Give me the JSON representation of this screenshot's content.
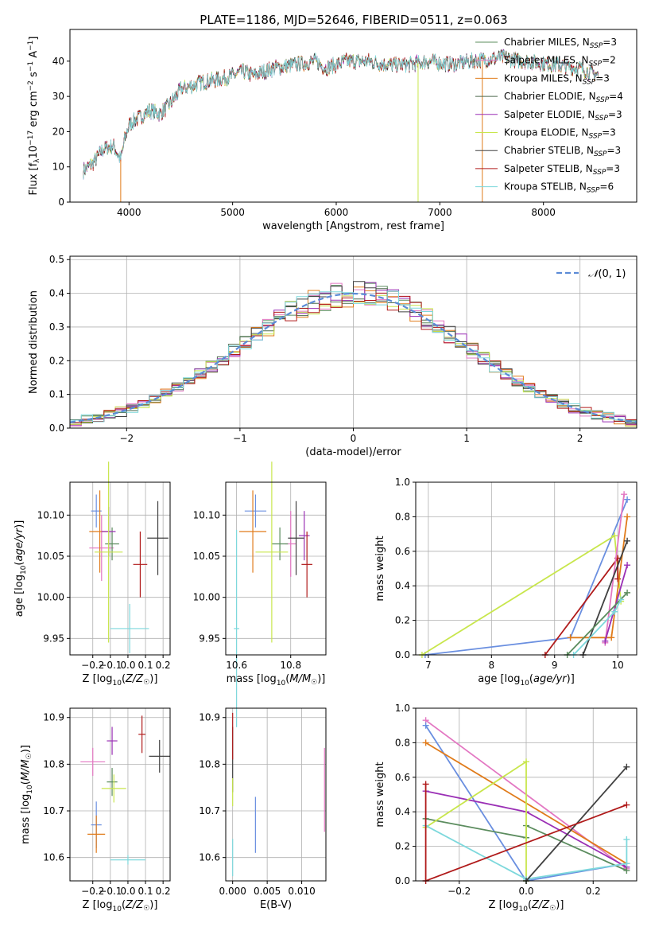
{
  "figure": {
    "title": "PLATE=1186, MJD=52646, FIBERID=0511, z=0.063"
  },
  "colors": {
    "Chabrier MILES": "#5b8c5e",
    "Salpeter MILES": "#e377c2",
    "Kroupa MILES": "#e07b1a",
    "Chabrier ELODIE": "#4f6b4f",
    "Salpeter ELODIE": "#9a2fb5",
    "Kroupa ELODIE": "#c8e64c",
    "Chabrier STELIB": "#404040",
    "Salpeter STELIB": "#b01a1a",
    "Kroupa STELIB": "#7dd8dc",
    "blue": "#6a8fe0"
  },
  "chart_data": [
    {
      "id": "spectrum",
      "type": "line",
      "xlabel": "wavelength [Angstrom, rest frame]",
      "ylabel": "Flux [f_λ 10^-17 erg cm^-2 s^-1 A^-1]",
      "xlim": [
        3430,
        8900
      ],
      "ylim": [
        0,
        49
      ],
      "xticks": [
        4000,
        5000,
        6000,
        7000,
        8000
      ],
      "yticks": [
        0,
        10,
        20,
        30,
        40
      ],
      "legend_position": "right",
      "legend": [
        {
          "label": "Chabrier MILES, N",
          "sub": "SSP",
          "n": "=3",
          "color": "#5b8c5e"
        },
        {
          "label": "Salpeter MILES, N",
          "sub": "SSP",
          "n": "=2",
          "color": "#e377c2"
        },
        {
          "label": "Kroupa MILES, N",
          "sub": "SSP",
          "n": "=3",
          "color": "#e07b1a"
        },
        {
          "label": "Chabrier ELODIE, N",
          "sub": "SSP",
          "n": "=4",
          "color": "#4f6b4f"
        },
        {
          "label": "Salpeter ELODIE, N",
          "sub": "SSP",
          "n": "=3",
          "color": "#9a2fb5"
        },
        {
          "label": "Kroupa ELODIE, N",
          "sub": "SSP",
          "n": "=3",
          "color": "#c8e64c"
        },
        {
          "label": "Chabrier STELIB, N",
          "sub": "SSP",
          "n": "=3",
          "color": "#404040"
        },
        {
          "label": "Salpeter STELIB, N",
          "sub": "SSP",
          "n": "=3",
          "color": "#b01a1a"
        },
        {
          "label": "Kroupa STELIB, N",
          "sub": "SSP",
          "n": "=6",
          "color": "#7dd8dc"
        }
      ],
      "continuum": [
        [
          3560,
          9
        ],
        [
          3650,
          11
        ],
        [
          3750,
          15
        ],
        [
          3850,
          16
        ],
        [
          3920,
          12
        ],
        [
          3960,
          18
        ],
        [
          4000,
          22
        ],
        [
          4100,
          24
        ],
        [
          4200,
          26
        ],
        [
          4300,
          25
        ],
        [
          4400,
          28
        ],
        [
          4500,
          32
        ],
        [
          4700,
          34
        ],
        [
          4900,
          35
        ],
        [
          5100,
          37
        ],
        [
          5200,
          36
        ],
        [
          5400,
          38
        ],
        [
          5600,
          39
        ],
        [
          5800,
          40
        ],
        [
          5900,
          38
        ],
        [
          6100,
          40
        ],
        [
          6300,
          40
        ],
        [
          6500,
          39
        ],
        [
          6700,
          39
        ],
        [
          6900,
          40
        ],
        [
          7100,
          39
        ],
        [
          7300,
          40
        ],
        [
          7600,
          41
        ],
        [
          7800,
          40
        ],
        [
          8100,
          39
        ],
        [
          8350,
          38
        ],
        [
          8530,
          36
        ]
      ],
      "dropouts": [
        {
          "x": 3920,
          "color": "#e07b1a"
        },
        {
          "x": 6790,
          "color": "#c8e64c"
        },
        {
          "x": 7410,
          "color": "#e07b1a"
        }
      ]
    },
    {
      "id": "residuals",
      "type": "line",
      "xlabel": "(data-model)/error",
      "ylabel": "Normed distribution",
      "xlim": [
        -2.5,
        2.5
      ],
      "ylim": [
        0,
        0.51
      ],
      "xticks": [
        -2,
        -1,
        0,
        1,
        2
      ],
      "yticks": [
        0.0,
        0.1,
        0.2,
        0.3,
        0.4,
        0.5
      ],
      "legend_label": "N(0,1)",
      "legend_position": "top-right",
      "grid": true
    },
    {
      "id": "age-vs-Z",
      "type": "scatter",
      "xlabel": "Z [log10(Z/Z☉)]",
      "ylabel": "age  [log10(age/yr)]",
      "xlim": [
        -0.33,
        0.24
      ],
      "ylim": [
        9.93,
        10.14
      ],
      "xticks": [
        -0.2,
        -0.1,
        0.0,
        0.1,
        0.2
      ],
      "yticks": [
        9.95,
        10.0,
        10.05,
        10.1
      ],
      "grid": true,
      "points": [
        {
          "x": -0.18,
          "y": 10.105,
          "xerr": 0.03,
          "yerr": 0.02,
          "color": "#6a8fe0"
        },
        {
          "x": -0.15,
          "y": 10.06,
          "xerr": 0.07,
          "yerr": 0.04,
          "color": "#e377c2"
        },
        {
          "x": -0.16,
          "y": 10.08,
          "xerr": 0.06,
          "yerr": 0.05,
          "color": "#e07b1a"
        },
        {
          "x": -0.09,
          "y": 10.065,
          "xerr": 0.04,
          "yerr": 0.02,
          "color": "#5b8c5e"
        },
        {
          "x": -0.11,
          "y": 10.08,
          "xerr": 0.04,
          "yerr": 0.03,
          "color": "#9a2fb5"
        },
        {
          "x": -0.11,
          "y": 10.055,
          "xerr": 0.08,
          "yerr": 0.11,
          "color": "#c8e64c"
        },
        {
          "x": 0.17,
          "y": 10.072,
          "xerr": 0.06,
          "yerr": 0.045,
          "color": "#404040"
        },
        {
          "x": 0.07,
          "y": 10.04,
          "xerr": 0.04,
          "yerr": 0.04,
          "color": "#b01a1a"
        },
        {
          "x": 0.01,
          "y": 9.962,
          "xerr": 0.11,
          "yerr": 0.03,
          "color": "#7dd8dc"
        }
      ]
    },
    {
      "id": "age-vs-mass",
      "type": "scatter",
      "xlabel": "mass [log10(M/M☉)]",
      "ylabel": "",
      "xlim": [
        10.56,
        10.93
      ],
      "ylim": [
        9.93,
        10.14
      ],
      "xticks": [
        10.6,
        10.8
      ],
      "yticks": [
        9.95,
        10.0,
        10.05,
        10.1
      ],
      "grid": true,
      "points": [
        {
          "x": 10.67,
          "y": 10.105,
          "xerr": 0.04,
          "yerr": 0.02,
          "color": "#6a8fe0"
        },
        {
          "x": 10.8,
          "y": 10.065,
          "xerr": 0.02,
          "yerr": 0.04,
          "color": "#e377c2"
        },
        {
          "x": 10.66,
          "y": 10.08,
          "xerr": 0.05,
          "yerr": 0.05,
          "color": "#e07b1a"
        },
        {
          "x": 10.76,
          "y": 10.065,
          "xerr": 0.03,
          "yerr": 0.02,
          "color": "#5b8c5e"
        },
        {
          "x": 10.85,
          "y": 10.075,
          "xerr": 0.02,
          "yerr": 0.03,
          "color": "#9a2fb5"
        },
        {
          "x": 10.73,
          "y": 10.055,
          "xerr": 0.06,
          "yerr": 0.11,
          "color": "#c8e64c"
        },
        {
          "x": 10.82,
          "y": 10.072,
          "xerr": 0.03,
          "yerr": 0.045,
          "color": "#404040"
        },
        {
          "x": 10.86,
          "y": 10.04,
          "xerr": 0.02,
          "yerr": 0.04,
          "color": "#b01a1a"
        },
        {
          "x": 10.6,
          "y": 9.962,
          "xerr": 0.01,
          "yerr": 0.12,
          "color": "#7dd8dc"
        }
      ]
    },
    {
      "id": "weight-vs-age",
      "type": "line",
      "xlabel": "age  [log10(age/yr)]",
      "ylabel": "mass weight",
      "xlim": [
        6.8,
        10.3
      ],
      "ylim": [
        0.0,
        1.0
      ],
      "xticks": [
        7,
        8,
        9,
        10
      ],
      "yticks": [
        0.0,
        0.2,
        0.4,
        0.6,
        0.8,
        1.0
      ],
      "grid": true,
      "series": [
        {
          "color": "#6a8fe0",
          "x": [
            6.95,
            9.25,
            10.15
          ],
          "y": [
            0.0,
            0.1,
            0.9
          ]
        },
        {
          "color": "#c8e64c",
          "x": [
            6.9,
            9.95,
            10.05
          ],
          "y": [
            0.0,
            0.69,
            0.31
          ]
        },
        {
          "color": "#b01a1a",
          "x": [
            8.85,
            10.0,
            10.0
          ],
          "y": [
            0.0,
            0.56,
            0.44
          ]
        },
        {
          "color": "#e377c2",
          "x": [
            9.8,
            10.1
          ],
          "y": [
            0.07,
            0.93
          ]
        },
        {
          "color": "#e07b1a",
          "x": [
            9.25,
            9.9,
            10.15
          ],
          "y": [
            0.1,
            0.1,
            0.8
          ]
        },
        {
          "color": "#9a2fb5",
          "x": [
            9.8,
            10.15
          ],
          "y": [
            0.08,
            0.52
          ]
        },
        {
          "color": "#404040",
          "x": [
            9.45,
            10.15
          ],
          "y": [
            0.0,
            0.66
          ]
        },
        {
          "color": "#5b8c5e",
          "x": [
            9.2,
            10.15
          ],
          "y": [
            0.0,
            0.36
          ]
        },
        {
          "color": "#7dd8dc",
          "x": [
            9.3,
            9.95,
            10.05
          ],
          "y": [
            0.0,
            0.25,
            0.32
          ]
        }
      ]
    },
    {
      "id": "mass-vs-Z",
      "type": "scatter",
      "xlabel": "Z [log10(Z/Z☉)]",
      "ylabel": "mass [log10(M/M☉)]",
      "xlim": [
        -0.33,
        0.24
      ],
      "ylim": [
        10.55,
        10.92
      ],
      "xticks": [
        -0.2,
        -0.1,
        0.0,
        0.1,
        0.2
      ],
      "yticks": [
        10.6,
        10.7,
        10.8,
        10.9
      ],
      "grid": true,
      "points": [
        {
          "x": -0.18,
          "y": 10.67,
          "xerr": 0.03,
          "yerr": 0.05,
          "color": "#6a8fe0"
        },
        {
          "x": -0.2,
          "y": 10.805,
          "xerr": 0.07,
          "yerr": 0.03,
          "color": "#e377c2"
        },
        {
          "x": -0.18,
          "y": 10.65,
          "xerr": 0.05,
          "yerr": 0.04,
          "color": "#e07b1a"
        },
        {
          "x": -0.09,
          "y": 10.762,
          "xerr": 0.03,
          "yerr": 0.03,
          "color": "#5b8c5e"
        },
        {
          "x": -0.09,
          "y": 10.85,
          "xerr": 0.03,
          "yerr": 0.03,
          "color": "#9a2fb5"
        },
        {
          "x": -0.08,
          "y": 10.748,
          "xerr": 0.07,
          "yerr": 0.03,
          "color": "#c8e64c"
        },
        {
          "x": 0.18,
          "y": 10.817,
          "xerr": 0.06,
          "yerr": 0.035,
          "color": "#404040"
        },
        {
          "x": 0.08,
          "y": 10.864,
          "xerr": 0.02,
          "yerr": 0.04,
          "color": "#b01a1a"
        },
        {
          "x": 0.0,
          "y": 10.595,
          "xerr": 0.1,
          "yerr": 0.01,
          "color": "#7dd8dc"
        }
      ]
    },
    {
      "id": "mass-vs-EBV",
      "type": "scatter",
      "xlabel": "E(B-V)",
      "ylabel": "",
      "xlim": [
        -0.001,
        0.0135
      ],
      "ylim": [
        10.55,
        10.92
      ],
      "xticks": [
        0.0,
        0.005,
        0.01
      ],
      "xticklabels": [
        "0.000",
        "0.005",
        "0.010"
      ],
      "yticks": [
        10.6,
        10.7,
        10.8,
        10.9
      ],
      "grid": true,
      "points": [
        {
          "x": 0.0033,
          "y": 10.67,
          "xerr": 0,
          "yerr": 0.06,
          "color": "#6a8fe0"
        },
        {
          "x": 0.0133,
          "y": 10.745,
          "xerr": 0,
          "yerr": 0.09,
          "color": "#e377c2"
        },
        {
          "x": 0.0,
          "y": 10.81,
          "xerr": 0,
          "yerr": 0.07,
          "color": "#404040"
        },
        {
          "x": 0.0,
          "y": 10.86,
          "xerr": 0,
          "yerr": 0.05,
          "color": "#b01a1a"
        },
        {
          "x": 0.0,
          "y": 10.74,
          "xerr": 0,
          "yerr": 0.03,
          "color": "#c8e64c"
        },
        {
          "x": 0.0,
          "y": 10.6,
          "xerr": 0,
          "yerr": 0.04,
          "color": "#7dd8dc"
        }
      ]
    },
    {
      "id": "weight-vs-Z",
      "type": "line",
      "xlabel": "Z [log10(Z/Z☉)]",
      "ylabel": "mass weight",
      "xlim": [
        -0.33,
        0.33
      ],
      "ylim": [
        0.0,
        1.0
      ],
      "xticks": [
        -0.2,
        0.0,
        0.2
      ],
      "yticks": [
        0.0,
        0.2,
        0.4,
        0.6,
        0.8,
        1.0
      ],
      "grid": true,
      "series": [
        {
          "color": "#e377c2",
          "x": [
            -0.3,
            0.3
          ],
          "y": [
            0.93,
            0.07
          ]
        },
        {
          "color": "#6a8fe0",
          "x": [
            -0.3,
            0.0,
            0.3
          ],
          "y": [
            0.9,
            0.0,
            0.1
          ]
        },
        {
          "color": "#e07b1a",
          "x": [
            -0.3,
            0.3
          ],
          "y": [
            0.8,
            0.1
          ]
        },
        {
          "color": "#9a2fb5",
          "x": [
            -0.3,
            0.0,
            0.3
          ],
          "y": [
            0.52,
            0.4,
            0.08
          ]
        },
        {
          "color": "#5b8c5e",
          "x": [
            -0.3,
            0.0,
            0.0,
            0.3
          ],
          "y": [
            0.36,
            0.25,
            0.32,
            0.06
          ]
        },
        {
          "color": "#c8e64c",
          "x": [
            -0.3,
            0.0,
            0.0
          ],
          "y": [
            0.31,
            0.69,
            0.0
          ]
        },
        {
          "color": "#7dd8dc",
          "x": [
            -0.3,
            0.0,
            0.3,
            0.3
          ],
          "y": [
            0.32,
            0.01,
            0.1,
            0.24
          ]
        },
        {
          "color": "#404040",
          "x": [
            0.0,
            0.3
          ],
          "y": [
            0.0,
            0.66
          ]
        },
        {
          "color": "#b01a1a",
          "x": [
            -0.3,
            -0.3,
            0.3
          ],
          "y": [
            0.56,
            0.0,
            0.44
          ]
        }
      ]
    }
  ]
}
